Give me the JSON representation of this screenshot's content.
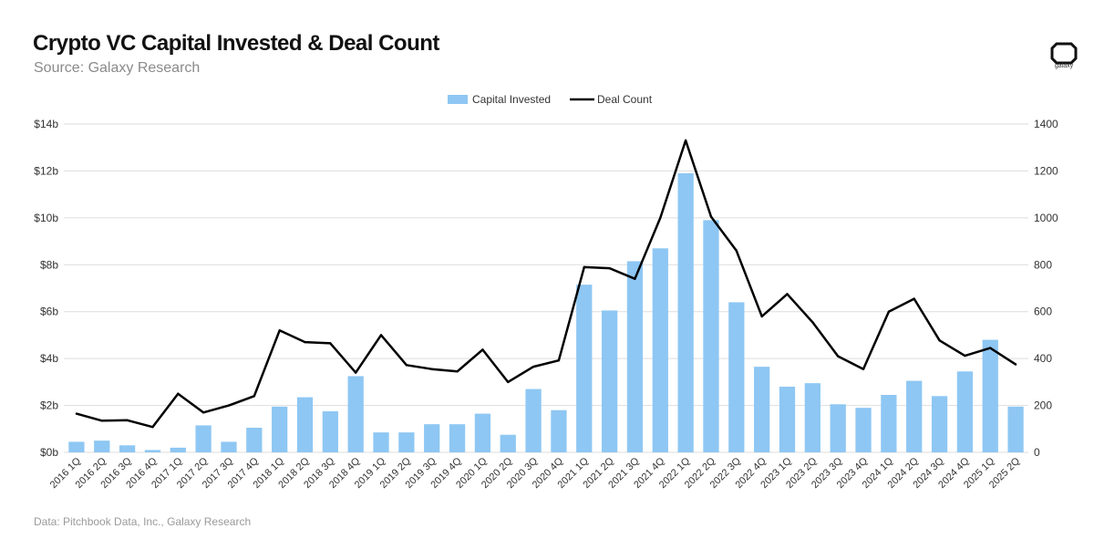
{
  "header": {
    "title": "Crypto VC Capital Invested & Deal Count",
    "subtitle": "Source: Galaxy Research"
  },
  "footer": {
    "note": "Data: Pitchbook Data, Inc., Galaxy Research"
  },
  "logo": {
    "text": "galaxy"
  },
  "colors": {
    "bar": "#8ec7f3",
    "line": "#000000",
    "grid": "#dedede",
    "text": "#333333"
  },
  "chart_data": {
    "type": "bar",
    "title": "Crypto VC Capital Invested & Deal Count",
    "categories": [
      "2016 1Q",
      "2016 2Q",
      "2016 3Q",
      "2016 4Q",
      "2017 1Q",
      "2017 2Q",
      "2017 3Q",
      "2017 4Q",
      "2018 1Q",
      "2018 2Q",
      "2018 3Q",
      "2018 4Q",
      "2019 1Q",
      "2019 2Q",
      "2019 3Q",
      "2019 4Q",
      "2020 1Q",
      "2020 2Q",
      "2020 3Q",
      "2020 4Q",
      "2021 1Q",
      "2021 2Q",
      "2021 3Q",
      "2021 4Q",
      "2022 1Q",
      "2022 2Q",
      "2022 3Q",
      "2022 4Q",
      "2023 1Q",
      "2023 2Q",
      "2023 3Q",
      "2023 4Q",
      "2024 1Q",
      "2024 2Q",
      "2024 3Q",
      "2024 4Q",
      "2025 1Q",
      "2025 2Q"
    ],
    "series": [
      {
        "name": "Capital Invested",
        "type": "bar",
        "axis": "left",
        "values": [
          0.45,
          0.5,
          0.3,
          0.1,
          0.2,
          1.15,
          0.45,
          1.05,
          1.95,
          2.35,
          1.75,
          3.25,
          0.85,
          0.85,
          1.2,
          1.2,
          1.65,
          0.75,
          2.7,
          1.8,
          7.15,
          6.05,
          8.15,
          8.7,
          11.9,
          9.9,
          6.4,
          3.65,
          2.8,
          2.95,
          2.05,
          1.9,
          2.45,
          3.05,
          2.4,
          3.45,
          4.8,
          1.95
        ]
      },
      {
        "name": "Deal Count",
        "type": "line",
        "axis": "right",
        "values": [
          165,
          135,
          137,
          108,
          250,
          170,
          200,
          240,
          520,
          470,
          465,
          340,
          500,
          372,
          355,
          345,
          438,
          300,
          365,
          392,
          790,
          785,
          740,
          1000,
          1330,
          1005,
          860,
          580,
          675,
          555,
          410,
          355,
          600,
          655,
          477,
          412,
          445,
          375
        ]
      }
    ],
    "y_left": {
      "ylim": [
        0,
        14
      ],
      "ticks": [
        0,
        2,
        4,
        6,
        8,
        10,
        12,
        14
      ],
      "tick_labels": [
        "$0b",
        "$2b",
        "$4b",
        "$6b",
        "$8b",
        "$10b",
        "$12b",
        "$14b"
      ]
    },
    "y_right": {
      "ylim": [
        0,
        1400
      ],
      "ticks": [
        0,
        200,
        400,
        600,
        800,
        1000,
        1200,
        1400
      ],
      "tick_labels": [
        "0",
        "200",
        "400",
        "600",
        "800",
        "1000",
        "1200",
        "1400"
      ]
    },
    "legend": {
      "position": "top-center",
      "entries": [
        "Capital Invested",
        "Deal Count"
      ]
    },
    "grid": true
  }
}
